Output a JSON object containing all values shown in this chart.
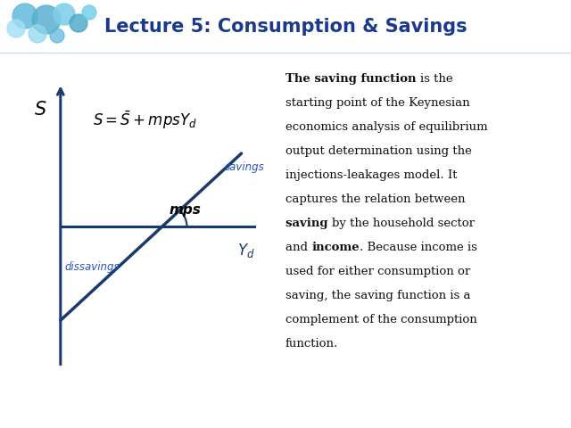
{
  "title": "Lecture 5: Consumption & Savings",
  "title_color": "#1a3a8f",
  "title_fontsize": 15,
  "background_color": "#ffffff",
  "graph_color": "#1a3a6e",
  "axis_color": "#1a3a6e",
  "savings_label_color": "#2255cc",
  "dissavings_label_color": "#2255cc",
  "equation_color": "#000000",
  "right_text_color": "#111111",
  "paragraph_lines": [
    [
      [
        "bold",
        "The saving function "
      ],
      [
        "normal",
        "is the"
      ]
    ],
    [
      [
        "normal",
        "starting point of the Keynesian"
      ]
    ],
    [
      [
        "normal",
        "economics analysis of equilibrium"
      ]
    ],
    [
      [
        "normal",
        "output determination using the"
      ]
    ],
    [
      [
        "normal",
        "injections-leakages model. It"
      ]
    ],
    [
      [
        "normal",
        "captures the relation between"
      ]
    ],
    [
      [
        "bold",
        "saving "
      ],
      [
        "normal",
        "by the household sector"
      ]
    ],
    [
      [
        "normal",
        "and "
      ],
      [
        "bold",
        "income"
      ],
      [
        "normal",
        ". Because income is"
      ]
    ],
    [
      [
        "normal",
        "used for either consumption or"
      ]
    ],
    [
      [
        "normal",
        "saving, the saving function is a"
      ]
    ],
    [
      [
        "normal",
        "complement of the consumption"
      ]
    ],
    [
      [
        "normal",
        "function."
      ]
    ]
  ]
}
